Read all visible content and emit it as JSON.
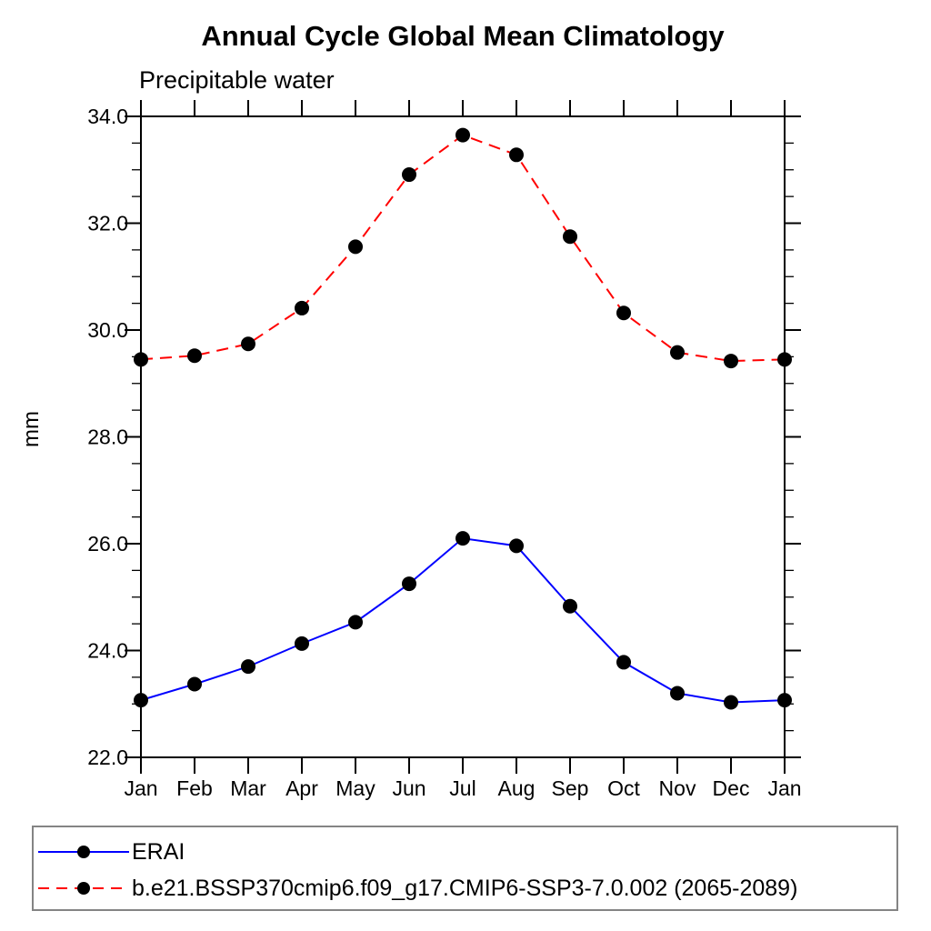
{
  "figure": {
    "title": "Annual Cycle Global Mean Climatology",
    "subtitle": "Precipitable water"
  },
  "chart_data": {
    "type": "line",
    "title": "Annual Cycle Global Mean Climatology",
    "subtitle": "Precipitable water",
    "xlabel": "",
    "ylabel": "mm",
    "categories": [
      "Jan",
      "Feb",
      "Mar",
      "Apr",
      "May",
      "Jun",
      "Jul",
      "Aug",
      "Sep",
      "Oct",
      "Nov",
      "Dec",
      "Jan"
    ],
    "series": [
      {
        "name": "ERAI",
        "color": "#0000ff",
        "line_style": "solid",
        "values": [
          23.07,
          23.37,
          23.7,
          24.13,
          24.53,
          25.25,
          26.1,
          25.96,
          24.83,
          23.78,
          23.2,
          23.03,
          23.07
        ]
      },
      {
        "name": "b.e21.BSSP370cmip6.f09_g17.CMIP6-SSP3-7.0.002 (2065-2089)",
        "color": "#ff0000",
        "line_style": "dashed",
        "values": [
          29.45,
          29.52,
          29.74,
          30.41,
          31.56,
          32.91,
          33.65,
          33.28,
          31.75,
          30.32,
          29.58,
          29.42,
          29.45
        ]
      }
    ],
    "marker": "filled-circle",
    "marker_color": "#000000",
    "ylim": [
      22.0,
      34.0
    ],
    "y_major_ticks": [
      22,
      24,
      26,
      28,
      30,
      32,
      34
    ],
    "y_tick_labels": [
      "22.0",
      "24.0",
      "26.0",
      "28.0",
      "30.0",
      "32.0",
      "34.0"
    ],
    "y_minor_step": 0.5,
    "grid": false,
    "legend_position": "bottom-left-box"
  }
}
